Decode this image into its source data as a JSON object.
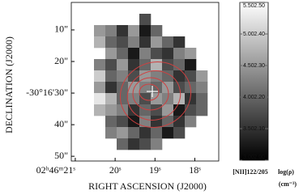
{
  "chart_data": {
    "type": "heatmap",
    "xlabel": "RIGHT ASCENSION (J2000)",
    "ylabel": "DECLINATION (J2000)",
    "xlim": [
      21.1,
      17.4
    ],
    "ylim": [
      1.3,
      51.5
    ],
    "xticks": [
      {
        "value": 21,
        "label": "02ʰ46ᵐ21ˢ"
      },
      {
        "value": 20,
        "label": "20ˢ"
      },
      {
        "value": 19,
        "label": "19ˢ"
      },
      {
        "value": 18,
        "label": "18ˢ"
      }
    ],
    "yticks": [
      {
        "value": 10,
        "label": "10\""
      },
      {
        "value": 20,
        "label": "20\""
      },
      {
        "value": 30,
        "label": "-30°16'30\""
      },
      {
        "value": 40,
        "label": "40\""
      },
      {
        "value": 50,
        "label": "50\""
      }
    ],
    "values": [
      [
        null,
        null,
        null,
        null,
        null,
        null,
        null,
        null,
        null,
        null,
        null,
        null,
        null
      ],
      [
        null,
        null,
        null,
        null,
        null,
        null,
        2.15,
        null,
        null,
        null,
        null,
        null,
        null
      ],
      [
        null,
        null,
        2.3,
        2.25,
        2.1,
        2.3,
        2.05,
        2.2,
        null,
        null,
        null,
        null,
        null
      ],
      [
        null,
        null,
        2.35,
        2.2,
        2.15,
        2.25,
        2.1,
        2.3,
        2.2,
        2.1,
        null,
        null,
        null
      ],
      [
        null,
        null,
        null,
        2.3,
        2.2,
        2.05,
        2.25,
        2.15,
        2.1,
        2.25,
        2.3,
        null,
        null
      ],
      [
        null,
        null,
        2.25,
        2.15,
        2.3,
        2.1,
        2.2,
        2.35,
        2.15,
        2.2,
        2.05,
        null,
        null
      ],
      [
        null,
        null,
        2.4,
        2.2,
        2.25,
        2.15,
        2.3,
        2.25,
        2.2,
        2.1,
        2.15,
        2.3,
        null
      ],
      [
        null,
        null,
        2.3,
        2.1,
        2.2,
        2.3,
        2.25,
        2.2,
        2.3,
        2.15,
        2.2,
        2.25,
        null
      ],
      [
        null,
        null,
        2.45,
        2.35,
        2.2,
        2.25,
        2.15,
        2.3,
        2.25,
        2.35,
        2.1,
        2.2,
        null
      ],
      [
        null,
        null,
        2.35,
        2.3,
        2.25,
        2.1,
        2.2,
        2.15,
        2.3,
        2.05,
        2.15,
        2.2,
        null
      ],
      [
        null,
        null,
        null,
        2.2,
        2.15,
        2.05,
        2.25,
        2.1,
        2.2,
        2.1,
        2.25,
        null,
        null
      ],
      [
        null,
        null,
        null,
        2.25,
        2.3,
        2.2,
        2.1,
        2.2,
        2.05,
        2.15,
        null,
        null,
        null
      ],
      [
        null,
        null,
        null,
        null,
        2.2,
        2.1,
        2.15,
        2.25,
        null,
        null,
        null,
        null,
        null
      ],
      [
        null,
        null,
        null,
        null,
        null,
        null,
        null,
        null,
        null,
        null,
        null,
        null,
        null
      ]
    ],
    "colorbar_lim": [
      2.0,
      2.5
    ],
    "colorbar_ticks": [
      {
        "value": 2.5,
        "label": "2.50"
      },
      {
        "value": 2.4,
        "label": "2.40"
      },
      {
        "value": 2.3,
        "label": "2.30"
      },
      {
        "value": 2.2,
        "label": "2.20"
      },
      {
        "value": 2.1,
        "label": "2.10"
      },
      {
        "value": 2.0,
        "label": "2.00"
      }
    ],
    "colorbar2_lim": [
      3.0,
      5.5
    ],
    "colorbar2_ticks": [
      {
        "value": 5.5,
        "label": "5.50"
      },
      {
        "value": 5.0,
        "label": "5.00"
      },
      {
        "value": 4.5,
        "label": "4.50"
      },
      {
        "value": 4.0,
        "label": "4.00"
      },
      {
        "value": 3.5,
        "label": "3.50"
      },
      {
        "value": 3.0,
        "label": "3.00"
      }
    ],
    "colorbar_label": "[NII]122/205",
    "colorbar2_label": "log(ρ)",
    "colorbar2_unit": "(cm⁻³)"
  }
}
